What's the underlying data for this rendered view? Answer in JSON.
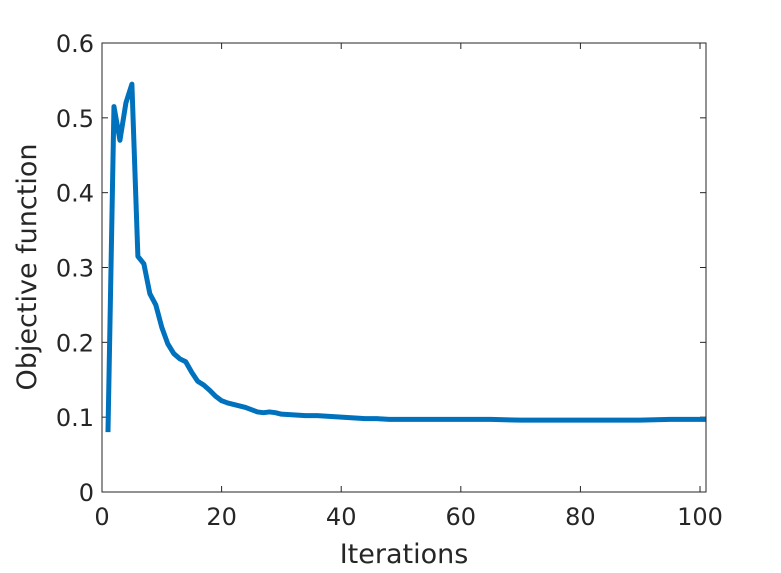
{
  "chart_data": {
    "type": "line",
    "title": "",
    "xlabel": "Iterations",
    "ylabel": "Objective function",
    "xlim": [
      0,
      101
    ],
    "ylim": [
      0,
      0.6
    ],
    "xticks": [
      0,
      20,
      40,
      60,
      80,
      100
    ],
    "yticks": [
      0,
      0.1,
      0.2,
      0.3,
      0.4,
      0.5,
      0.6
    ],
    "xtick_labels": [
      "0",
      "20",
      "40",
      "60",
      "80",
      "100"
    ],
    "ytick_labels": [
      "0",
      "0.1",
      "0.2",
      "0.3",
      "0.4",
      "0.5",
      "0.6"
    ],
    "grid": false,
    "line_color": "#0072BD",
    "series": [
      {
        "x": [
          1,
          2,
          3,
          4,
          5,
          6,
          7,
          8,
          9,
          10,
          11,
          12,
          13,
          14,
          15,
          16,
          17,
          18,
          19,
          20,
          21,
          22,
          23,
          24,
          25,
          26,
          27,
          28,
          29,
          30,
          32,
          34,
          36,
          38,
          40,
          42,
          44,
          46,
          48,
          50,
          55,
          60,
          65,
          70,
          75,
          80,
          85,
          90,
          95,
          100,
          101
        ],
        "values": [
          0.08,
          0.515,
          0.47,
          0.52,
          0.545,
          0.315,
          0.305,
          0.265,
          0.25,
          0.22,
          0.198,
          0.185,
          0.178,
          0.174,
          0.16,
          0.148,
          0.143,
          0.136,
          0.128,
          0.122,
          0.119,
          0.117,
          0.115,
          0.113,
          0.11,
          0.107,
          0.106,
          0.107,
          0.106,
          0.104,
          0.103,
          0.102,
          0.102,
          0.101,
          0.1,
          0.099,
          0.098,
          0.098,
          0.097,
          0.097,
          0.097,
          0.097,
          0.097,
          0.096,
          0.096,
          0.096,
          0.096,
          0.096,
          0.097,
          0.097,
          0.097
        ]
      }
    ]
  }
}
